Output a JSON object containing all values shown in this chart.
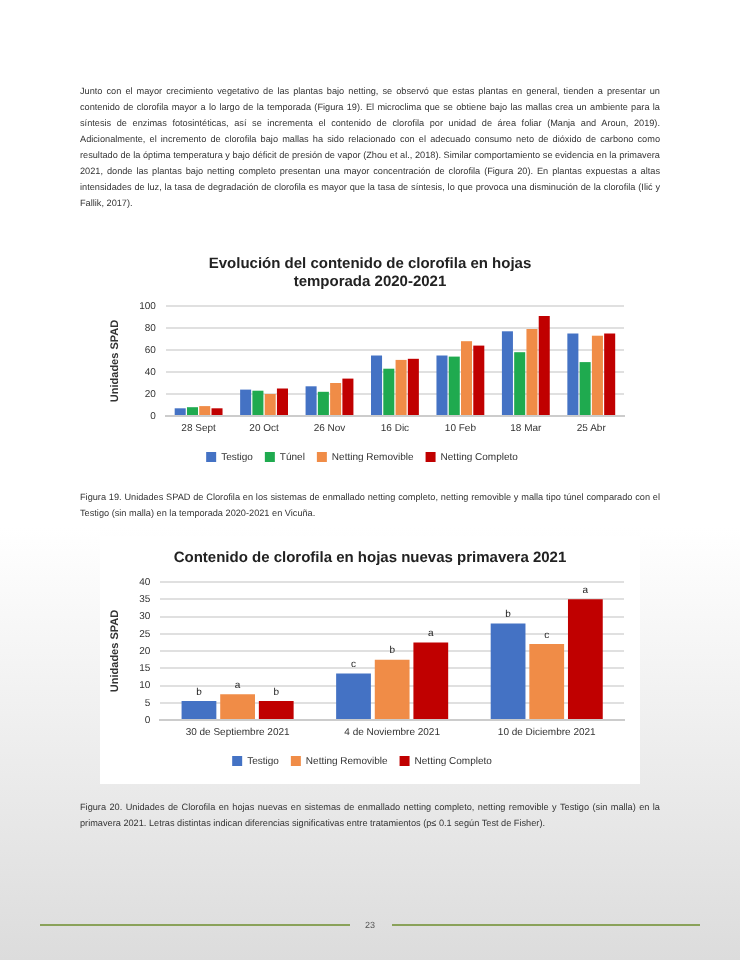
{
  "chart_data": [
    {
      "type": "bar",
      "title": "Evolución del contenido de clorofila en hojas temporada 2020-2021",
      "ylabel": "Unidades SPAD",
      "categories": [
        "28 Sept",
        "20 Oct",
        "26 Nov",
        "16 Dic",
        "10 Feb",
        "18 Mar",
        "25 Abr"
      ],
      "series": [
        {
          "name": "Testigo",
          "color": "#4472c4",
          "values": [
            7,
            24,
            27,
            55,
            55,
            77,
            75
          ]
        },
        {
          "name": "Túnel",
          "color": "#1faa4f",
          "values": [
            8,
            23,
            22,
            43,
            54,
            58,
            49
          ]
        },
        {
          "name": "Netting Removible",
          "color": "#f08c47",
          "values": [
            9,
            20,
            30,
            51,
            68,
            79,
            73
          ]
        },
        {
          "name": "Netting Completo",
          "color": "#c00000",
          "values": [
            7,
            25,
            34,
            52,
            64,
            91,
            75
          ]
        }
      ],
      "ylim": [
        0,
        100
      ],
      "yticks": [
        0,
        20,
        40,
        60,
        80,
        100
      ],
      "grid": "y",
      "legend": "bottom",
      "annotations": [
        "Junto con el mayor crecimiento vegetativo de las plantas bajo netting, se observó que estas plantas en general, tienden a presentar un contenido de clorofila mayor a lo largo de la temporada (Figura 19). El microclima que se obtiene bajo las mallas crea un ambiente para la síntesis de enzimas fotosintéticas, así se incrementa el contenido de clorofila por unidad de área foliar (Manja and Aroun, 2019). Adicionalmente, el incremento de clorofila bajo mallas ha sido relacionado con el adecuado consumo neto de dióxido de carbono como resultado de la óptima temperatura y bajo déficit de presión de vapor (Zhou et al., 2018). Similar comportamiento se evidencia en la primavera 2021, donde las plantas bajo netting completo presentan una mayor concentración de clorofila (Figura 20). En plantas expuestas a altas intensidades de luz, la tasa de degradación de clorofila es mayor que la tasa de síntesis, lo que provoca una disminución de la clorofila (Ilić y Fallik, 2017).",
        "Figura 19. Unidades SPAD de Clorofila en los sistemas de enmallado netting completo, netting removible y malla tipo túnel comparado con el Testigo (sin malla) en la temporada 2020-2021 en Vicuña."
      ]
    },
    {
      "type": "bar",
      "title": "Contenido de clorofila en hojas nuevas primavera 2021",
      "ylabel": "Unidades SPAD",
      "categories": [
        "30 de Septiembre 2021",
        "4 de Noviembre 2021",
        "10 de Diciembre 2021"
      ],
      "series": [
        {
          "name": "Testigo",
          "color": "#4472c4",
          "values": [
            5.5,
            13.5,
            28
          ],
          "value_labels": [
            "b",
            "c",
            "b"
          ]
        },
        {
          "name": "Netting Removible",
          "color": "#f08c47",
          "values": [
            7.5,
            17.5,
            22
          ],
          "value_labels": [
            "a",
            "b",
            "c"
          ]
        },
        {
          "name": "Netting Completo",
          "color": "#c00000",
          "values": [
            5.5,
            22.5,
            35
          ],
          "value_labels": [
            "b",
            "a",
            "a"
          ]
        }
      ],
      "ylim": [
        0,
        40
      ],
      "yticks": [
        0,
        5,
        10,
        15,
        20,
        25,
        30,
        35,
        40
      ],
      "grid": "y",
      "legend": "bottom",
      "annotations": [
        "Figura 20. Unidades de Clorofila en hojas nuevas en sistemas de enmallado netting completo, netting removible y Testigo (sin malla) en la primavera 2021. Letras distintas indican diferencias significativas entre tratamientos (p≤ 0.1 según Test de Fisher).",
        "23"
      ]
    }
  ]
}
